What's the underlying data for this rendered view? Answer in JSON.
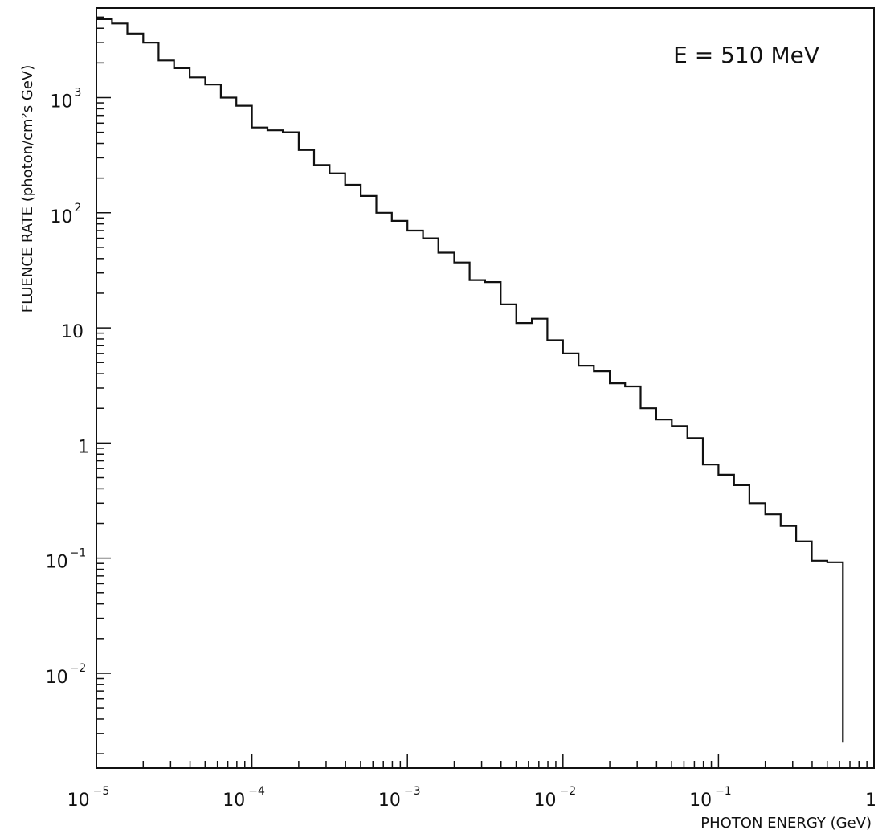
{
  "chart_data": {
    "type": "histogram-step",
    "title": "",
    "annotation": "E = 510 MeV",
    "xlabel": "PHOTON ENERGY (GeV)",
    "ylabel": "FLUENCE RATE (photon/cm²s GeV)",
    "x_scale": "log",
    "y_scale": "log",
    "xlim": [
      1e-05,
      1
    ],
    "ylim": [
      0.0015,
      6000
    ],
    "grid": false,
    "x_ticks": [
      {
        "value": 1e-05,
        "base": "10",
        "exp": "−5"
      },
      {
        "value": 0.0001,
        "base": "10",
        "exp": "−4"
      },
      {
        "value": 0.001,
        "base": "10",
        "exp": "−3"
      },
      {
        "value": 0.01,
        "base": "10",
        "exp": "−2"
      },
      {
        "value": 0.1,
        "base": "10",
        "exp": "−1"
      },
      {
        "value": 1,
        "base": "1",
        "exp": ""
      }
    ],
    "y_ticks": [
      {
        "value": 1000,
        "base": "10",
        "exp": "3"
      },
      {
        "value": 100,
        "base": "10",
        "exp": "2"
      },
      {
        "value": 10,
        "base": "10",
        "exp": ""
      },
      {
        "value": 1,
        "base": "1",
        "exp": ""
      },
      {
        "value": 0.1,
        "base": "10",
        "exp": "−1"
      },
      {
        "value": 0.01,
        "base": "10",
        "exp": "−2"
      }
    ],
    "bin_edges": [
      1e-05,
      1.26e-05,
      1.58e-05,
      2e-05,
      2.51e-05,
      3.16e-05,
      3.98e-05,
      5.01e-05,
      6.31e-05,
      7.94e-05,
      0.0001,
      0.000126,
      0.000158,
      0.0002,
      0.000251,
      0.000316,
      0.000398,
      0.000501,
      0.000631,
      0.000794,
      0.001,
      0.00126,
      0.00158,
      0.002,
      0.00251,
      0.00316,
      0.00398,
      0.00501,
      0.00631,
      0.00794,
      0.01,
      0.0126,
      0.0158,
      0.02,
      0.0251,
      0.0316,
      0.0398,
      0.0501,
      0.0631,
      0.0794,
      0.1,
      0.126,
      0.158,
      0.2,
      0.251,
      0.316,
      0.398,
      0.501,
      0.631
    ],
    "values": [
      4800,
      4400,
      3600,
      3000,
      2100,
      1800,
      1500,
      1300,
      1000,
      850,
      550,
      520,
      500,
      350,
      260,
      220,
      175,
      140,
      100,
      85,
      70,
      60,
      45,
      37,
      26,
      25,
      16,
      11,
      12,
      7.8,
      6,
      4.7,
      4.2,
      3.3,
      3.1,
      2,
      1.6,
      1.4,
      1.1,
      0.65,
      0.53,
      0.43,
      0.3,
      0.24,
      0.19,
      0.14,
      0.095,
      0.092,
      0.0025
    ]
  }
}
